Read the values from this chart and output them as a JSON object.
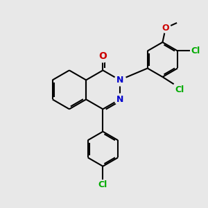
{
  "background_color": "#e8e8e8",
  "bond_color": "#000000",
  "n_color": "#0000cc",
  "o_color": "#cc0000",
  "cl_color": "#00aa00",
  "line_width": 1.5,
  "font_size": 9,
  "fig_size": [
    3.0,
    3.0
  ],
  "dpi": 100,
  "xlim": [
    0,
    10
  ],
  "ylim": [
    0,
    10
  ]
}
